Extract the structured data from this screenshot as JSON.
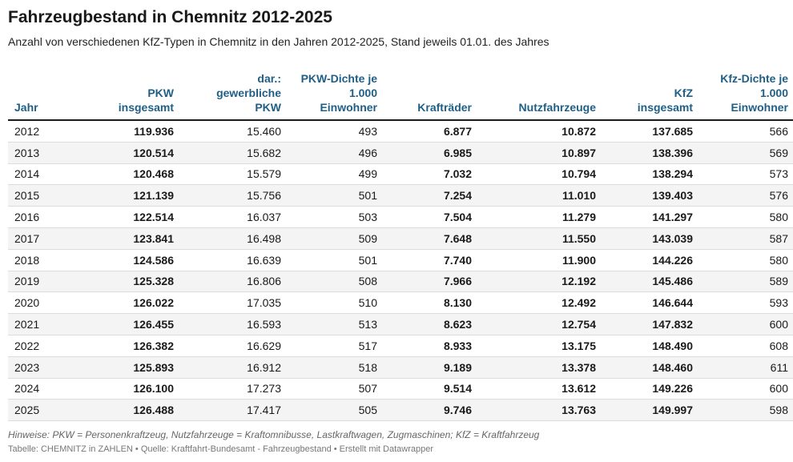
{
  "title": "Fahrzeugbestand in Chemnitz 2012-2025",
  "subtitle": "Anzahl von verschiedenen KfZ-Typen in Chemnitz in den Jahren 2012-2025, Stand jeweils 01.01. des Jahres",
  "notes": "Hinweise: PKW = Personenkraftzeug, Nutzfahrzeuge = Kraftomnibusse, Lastkraftwagen, Zugmaschinen; KfZ = Kraftfahrzeug",
  "source": "Tabelle: CHEMNITZ in ZAHLEN • Quelle: Kraftfahrt-Bundesamt - Fahrzeugbestand • Erstellt mit Datawrapper",
  "chart_data": {
    "type": "table",
    "columns": [
      "Jahr",
      "PKW insgesamt",
      "dar.: gewerbliche PKW",
      "PKW-Dichte je 1.000 Einwohner",
      "Krafträder",
      "Nutzfahrzeuge",
      "KfZ insgesamt",
      "Kfz-Dichte je 1.000 Einwohner"
    ],
    "bold_columns": [
      1,
      4,
      5,
      6
    ],
    "rows": [
      [
        "2012",
        "119.936",
        "15.460",
        "493",
        "6.877",
        "10.872",
        "137.685",
        "566"
      ],
      [
        "2013",
        "120.514",
        "15.682",
        "496",
        "6.985",
        "10.897",
        "138.396",
        "569"
      ],
      [
        "2014",
        "120.468",
        "15.579",
        "499",
        "7.032",
        "10.794",
        "138.294",
        "573"
      ],
      [
        "2015",
        "121.139",
        "15.756",
        "501",
        "7.254",
        "11.010",
        "139.403",
        "576"
      ],
      [
        "2016",
        "122.514",
        "16.037",
        "503",
        "7.504",
        "11.279",
        "141.297",
        "580"
      ],
      [
        "2017",
        "123.841",
        "16.498",
        "509",
        "7.648",
        "11.550",
        "143.039",
        "587"
      ],
      [
        "2018",
        "124.586",
        "16.639",
        "501",
        "7.740",
        "11.900",
        "144.226",
        "580"
      ],
      [
        "2019",
        "125.328",
        "16.806",
        "508",
        "7.966",
        "12.192",
        "145.486",
        "589"
      ],
      [
        "2020",
        "126.022",
        "17.035",
        "510",
        "8.130",
        "12.492",
        "146.644",
        "593"
      ],
      [
        "2021",
        "126.455",
        "16.593",
        "513",
        "8.623",
        "12.754",
        "147.832",
        "600"
      ],
      [
        "2022",
        "126.382",
        "16.629",
        "517",
        "8.933",
        "13.175",
        "148.490",
        "608"
      ],
      [
        "2023",
        "125.893",
        "16.912",
        "518",
        "9.189",
        "13.378",
        "148.460",
        "611"
      ],
      [
        "2024",
        "126.100",
        "17.273",
        "507",
        "9.514",
        "13.612",
        "149.226",
        "600"
      ],
      [
        "2025",
        "126.488",
        "17.417",
        "505",
        "9.746",
        "13.763",
        "149.997",
        "598"
      ]
    ]
  }
}
